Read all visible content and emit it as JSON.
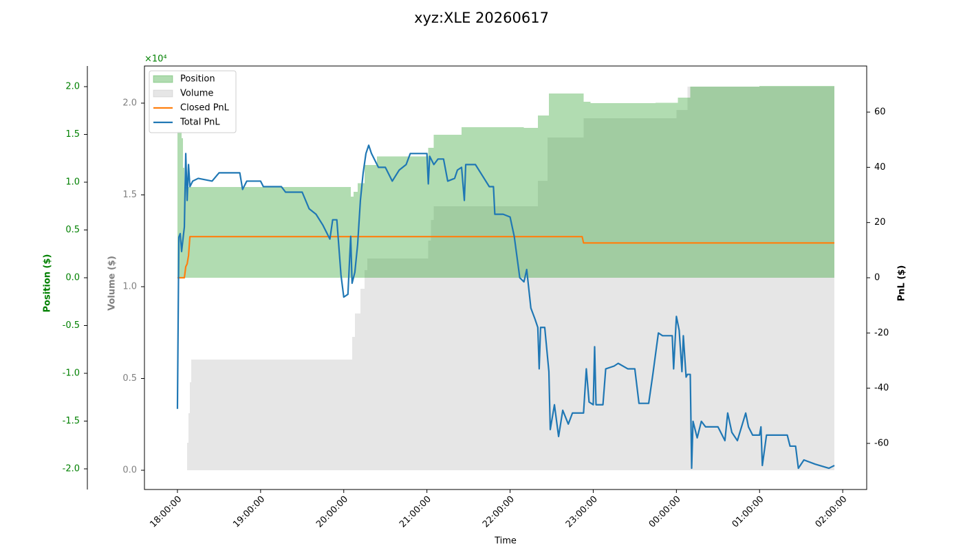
{
  "chart_data": {
    "type": "line",
    "title": "xyz:XLE 20260617",
    "xlabel": "Time",
    "xlim": [
      "17:36:12",
      "02:17:18"
    ],
    "xticks": [
      "18:00:00",
      "19:00:00",
      "20:00:00",
      "21:00:00",
      "22:00:00",
      "23:00:00",
      "00:00:00",
      "01:00:00",
      "02:00:00"
    ],
    "legend": "upper left",
    "axes": {
      "position": {
        "label": "Position ($)",
        "color": "#008000",
        "offset_label": "×10⁴",
        "lim": [
          -22160,
          22160
        ],
        "ticks": [
          {
            "value": -20000,
            "label": "-2.0"
          },
          {
            "value": -15000,
            "label": "-1.5"
          },
          {
            "value": -10000,
            "label": "-1.0"
          },
          {
            "value": -5000,
            "label": "-0.5"
          },
          {
            "value": 0,
            "label": "0.0"
          },
          {
            "value": 5000,
            "label": "0.5"
          },
          {
            "value": 10000,
            "label": "1.0"
          },
          {
            "value": 15000,
            "label": "1.5"
          },
          {
            "value": 20000,
            "label": "2.0"
          }
        ]
      },
      "volume": {
        "label": "Volume ($)",
        "color": "#808080",
        "lim": [
          -1049,
          22022
        ],
        "ticks": [
          {
            "value": 0,
            "label": "0.0"
          },
          {
            "value": 5000,
            "label": "0.5"
          },
          {
            "value": 10000,
            "label": "1.0"
          },
          {
            "value": 15000,
            "label": "1.5"
          },
          {
            "value": 20000,
            "label": "2.0"
          }
        ]
      },
      "pnl": {
        "label": "PnL ($)",
        "color": "#000000",
        "lim": [
          -76.7,
          76.7
        ],
        "ticks": [
          -60,
          -40,
          -20,
          0,
          20,
          40,
          60
        ]
      }
    },
    "series": [
      {
        "name": "Volume",
        "kind": "step-area",
        "axis": "volume",
        "color": "#808080",
        "opacity": 0.2,
        "x": [
          "18:00",
          "18:06",
          "18:07",
          "18:08",
          "18:09",
          "18:10",
          "20:05",
          "20:06",
          "20:08",
          "20:12",
          "20:15",
          "20:17",
          "21:01",
          "21:03",
          "21:05",
          "22:20",
          "22:27",
          "22:53",
          "00:00",
          "00:08",
          "01:54"
        ],
        "values": [
          0,
          0,
          1500,
          3100,
          4800,
          6030,
          6030,
          7270,
          8540,
          9890,
          10900,
          11540,
          12510,
          13630,
          14380,
          15770,
          18130,
          19180,
          19630,
          20900,
          20900
        ]
      },
      {
        "name": "Position",
        "kind": "step-area",
        "axis": "position",
        "color": "#2ca02c",
        "opacity": 0.37,
        "x": [
          "18:00",
          "18:03",
          "18:04",
          "18:05",
          "20:05",
          "20:07",
          "20:10",
          "20:15",
          "20:24",
          "21:01",
          "21:05",
          "21:25",
          "22:10",
          "22:20",
          "22:28",
          "22:53",
          "22:58",
          "23:45",
          "00:01",
          "00:10",
          "01:00",
          "01:54"
        ],
        "values": [
          15300,
          14600,
          11500,
          9500,
          8500,
          9000,
          9900,
          11800,
          12700,
          13600,
          14960,
          15760,
          15700,
          16980,
          19280,
          18420,
          18270,
          18300,
          18850,
          20000,
          20070,
          20070
        ]
      },
      {
        "name": "Closed PnL",
        "kind": "line",
        "axis": "pnl",
        "color": "#ff7f0e",
        "x": [
          "18:00",
          "18:05",
          "18:06",
          "18:07",
          "18:08",
          "18:09",
          "22:52",
          "22:53",
          "01:54"
        ],
        "values": [
          0,
          0,
          4,
          5,
          8,
          14.9,
          14.9,
          12.6,
          12.6
        ]
      },
      {
        "name": "Total PnL",
        "kind": "line",
        "axis": "pnl",
        "color": "#1f77b4",
        "x": [
          "18:00",
          "18:01",
          "18:02",
          "18:03",
          "18:04",
          "18:05",
          "18:06",
          "18:07",
          "18:08",
          "18:09",
          "18:11",
          "18:15",
          "18:25",
          "18:30",
          "18:45",
          "18:47",
          "18:50",
          "19:00",
          "19:02",
          "19:15",
          "19:18",
          "19:30",
          "19:35",
          "19:40",
          "19:45",
          "19:50",
          "19:52",
          "19:55",
          "19:58",
          "20:00",
          "20:03",
          "20:05",
          "20:06",
          "20:08",
          "20:10",
          "20:12",
          "20:14",
          "20:16",
          "20:18",
          "20:20",
          "20:25",
          "20:30",
          "20:35",
          "20:40",
          "20:45",
          "20:48",
          "21:00",
          "21:01",
          "21:02",
          "21:05",
          "21:08",
          "21:12",
          "21:15",
          "21:20",
          "21:22",
          "21:25",
          "21:27",
          "21:28",
          "21:35",
          "21:40",
          "21:45",
          "21:48",
          "21:49",
          "21:55",
          "22:00",
          "22:03",
          "22:07",
          "22:10",
          "22:12",
          "22:15",
          "22:18",
          "22:20",
          "22:21",
          "22:22",
          "22:25",
          "22:28",
          "22:29",
          "22:32",
          "22:35",
          "22:38",
          "22:42",
          "22:45",
          "22:50",
          "22:53",
          "22:55",
          "22:57",
          "23:00",
          "23:01",
          "23:02",
          "23:07",
          "23:09",
          "23:15",
          "23:18",
          "23:25",
          "23:30",
          "23:33",
          "23:40",
          "23:43",
          "23:47",
          "23:50",
          "23:57",
          "23:58",
          "00:00",
          "00:02",
          "00:04",
          "00:05",
          "00:07",
          "00:08",
          "00:10",
          "00:11",
          "00:12",
          "00:15",
          "00:18",
          "00:21",
          "00:25",
          "00:30",
          "00:35",
          "00:37",
          "00:40",
          "00:44",
          "00:50",
          "00:52",
          "00:55",
          "01:00",
          "01:01",
          "01:02",
          "01:05",
          "01:20",
          "01:22",
          "01:26",
          "01:28",
          "01:32",
          "01:40",
          "01:50",
          "01:54"
        ],
        "values": [
          -47.5,
          14.7,
          16,
          9.5,
          14,
          18.4,
          45,
          28,
          41,
          33,
          35,
          36,
          35,
          38,
          38,
          32,
          35,
          35,
          33,
          33,
          31,
          31,
          25,
          23,
          19,
          14,
          21,
          21,
          1,
          -7,
          -6,
          15,
          -2,
          2,
          12,
          28,
          38,
          45,
          48,
          45,
          40,
          40,
          35,
          39,
          41,
          45,
          45,
          34,
          44,
          41,
          43,
          43,
          35,
          36,
          39,
          40,
          28,
          41,
          41,
          37,
          33,
          33,
          23,
          23,
          22,
          15,
          0,
          -1.5,
          3,
          -11,
          -15,
          -18,
          -33,
          -18,
          -18,
          -34,
          -55,
          -46,
          -57.5,
          -48,
          -53,
          -49,
          -49,
          -49,
          -33,
          -45,
          -46,
          -25,
          -46,
          -46,
          -33,
          -32,
          -31,
          -33,
          -33,
          -45.5,
          -45.5,
          -35,
          -20,
          -21,
          -21,
          -33,
          -14,
          -19,
          -34,
          -21,
          -36,
          -35,
          -35,
          -69,
          -52,
          -58,
          -52,
          -54,
          -54,
          -54,
          -59,
          -49,
          -56,
          -59,
          -49,
          -54,
          -57,
          -57,
          -54,
          -68,
          -57,
          -57,
          -61,
          -61,
          -69,
          -66,
          -67.5,
          -69,
          -68
        ]
      }
    ]
  }
}
